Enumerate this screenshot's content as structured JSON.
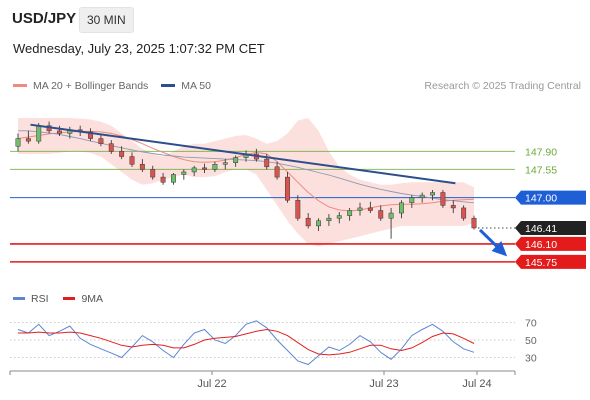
{
  "header": {
    "symbol": "USD/JPY",
    "timeframe": "30 MIN",
    "timestamp": "Wednesday, July 23, 2025 1:07:32 PM CET"
  },
  "legend": {
    "items": [
      {
        "label": "MA 20 + Bollinger Bands",
        "color": "#f08a80"
      },
      {
        "label": "MA 50",
        "color": "#2b4f8c"
      }
    ],
    "credit": "Research © 2025 Trading Central"
  },
  "rsi_legend": {
    "items": [
      {
        "label": "RSI",
        "color": "#5a86d4"
      },
      {
        "label": "9MA",
        "color": "#e02020"
      }
    ]
  },
  "chart_data": [
    {
      "type": "candlestick",
      "x_ticks": [
        "Jul 22",
        "Jul 23",
        "Jul 24"
      ],
      "ylim": [
        145.3,
        148.55
      ],
      "levels": [
        {
          "value": "147.90",
          "kind": "resistance",
          "color": "#6aaa3a",
          "boxed": false
        },
        {
          "value": "147.55",
          "kind": "resistance",
          "color": "#6aaa3a",
          "boxed": false
        },
        {
          "value": "147.00",
          "kind": "pivot",
          "color": "#1f5fd6",
          "boxed": true
        },
        {
          "value": "146.41",
          "kind": "last-price",
          "color": "#222222",
          "boxed": true
        },
        {
          "value": "146.10",
          "kind": "support",
          "color": "#e31b1b",
          "boxed": true
        },
        {
          "value": "145.75",
          "kind": "support",
          "color": "#e31b1b",
          "boxed": true
        }
      ],
      "trendline": {
        "start": 148.42,
        "end": 147.28,
        "color": "#2b4f8c"
      },
      "forecast_arrow": {
        "from": 146.41,
        "to": 145.78,
        "direction": "down",
        "color": "#1f5fd6"
      },
      "series": [
        {
          "name": "MA 20",
          "values": [
            148.15,
            148.18,
            148.21,
            148.24,
            148.26,
            148.28,
            148.29,
            148.29,
            148.28,
            148.25,
            148.2,
            148.13,
            148.05,
            147.96,
            147.88,
            147.8,
            147.74,
            147.7,
            147.69,
            147.7,
            147.73,
            147.78,
            147.84,
            147.88,
            147.85,
            147.7,
            147.5,
            147.3,
            147.1,
            146.94,
            146.82,
            146.76,
            146.74,
            146.76,
            146.8,
            146.84,
            146.86,
            146.87,
            146.87,
            146.88,
            146.9,
            146.93,
            146.95,
            146.96,
            146.97
          ]
        },
        {
          "name": "MA 50",
          "values": [
            148.3,
            148.3,
            148.28,
            148.26,
            148.23,
            148.19,
            148.15,
            148.1,
            148.06,
            148.01,
            147.97,
            147.93,
            147.89,
            147.86,
            147.83,
            147.81,
            147.79,
            147.78,
            147.77,
            147.76,
            147.75,
            147.74,
            147.73,
            147.72,
            147.7,
            147.67,
            147.63,
            147.59,
            147.54,
            147.49,
            147.44,
            147.38,
            147.32,
            147.26,
            147.21,
            147.16,
            147.12,
            147.08,
            147.05,
            147.02,
            146.99,
            146.96,
            146.94,
            146.92,
            146.9
          ]
        },
        {
          "name": "Bollinger Upper",
          "values": [
            148.55,
            148.55,
            148.55,
            148.55,
            148.55,
            148.55,
            148.54,
            148.52,
            148.48,
            148.4,
            148.25,
            148.1,
            147.95,
            147.85,
            147.8,
            147.9,
            148.0,
            148.05,
            148.05,
            148.1,
            148.15,
            148.2,
            148.22,
            148.15,
            148.05,
            148.1,
            148.25,
            148.5,
            148.55,
            148.3,
            147.9,
            147.6,
            147.45,
            147.35,
            147.3,
            147.25,
            147.25,
            147.28,
            147.3,
            147.3,
            147.3,
            147.3,
            147.3,
            147.3,
            147.2
          ]
        },
        {
          "name": "Bollinger Lower",
          "values": [
            147.85,
            147.85,
            147.85,
            147.85,
            147.87,
            147.9,
            147.9,
            147.87,
            147.8,
            147.65,
            147.5,
            147.35,
            147.25,
            147.28,
            147.35,
            147.4,
            147.45,
            147.4,
            147.4,
            147.42,
            147.5,
            147.55,
            147.55,
            147.45,
            147.15,
            146.85,
            146.55,
            146.3,
            146.1,
            146.05,
            146.1,
            146.15,
            146.2,
            146.25,
            146.3,
            146.35,
            146.4,
            146.45,
            146.45,
            146.45,
            146.45,
            146.45,
            146.45,
            146.45,
            146.5
          ]
        },
        {
          "name": "Price",
          "ohlc": [
            [
              148.0,
              148.25,
              147.9,
              148.15
            ],
            [
              148.15,
              148.3,
              148.05,
              148.1
            ],
            [
              148.1,
              148.45,
              148.05,
              148.4
            ],
            [
              148.4,
              148.48,
              148.25,
              148.3
            ],
            [
              148.3,
              148.4,
              148.2,
              148.25
            ],
            [
              148.25,
              148.38,
              148.15,
              148.32
            ],
            [
              148.32,
              148.4,
              148.2,
              148.28
            ],
            [
              148.28,
              148.35,
              148.1,
              148.15
            ],
            [
              148.15,
              148.25,
              148.0,
              148.05
            ],
            [
              148.05,
              148.12,
              147.85,
              147.9
            ],
            [
              147.9,
              148.0,
              147.75,
              147.8
            ],
            [
              147.8,
              147.88,
              147.6,
              147.65
            ],
            [
              147.65,
              147.75,
              147.5,
              147.55
            ],
            [
              147.55,
              147.62,
              147.35,
              147.4
            ],
            [
              147.4,
              147.48,
              147.25,
              147.3
            ],
            [
              147.3,
              147.48,
              147.25,
              147.45
            ],
            [
              147.45,
              147.55,
              147.35,
              147.5
            ],
            [
              147.5,
              147.62,
              147.42,
              147.58
            ],
            [
              147.58,
              147.66,
              147.48,
              147.55
            ],
            [
              147.55,
              147.7,
              147.5,
              147.65
            ],
            [
              147.65,
              147.75,
              147.55,
              147.68
            ],
            [
              147.68,
              147.82,
              147.6,
              147.78
            ],
            [
              147.78,
              147.92,
              147.7,
              147.85
            ],
            [
              147.85,
              147.95,
              147.7,
              147.75
            ],
            [
              147.75,
              147.85,
              147.55,
              147.6
            ],
            [
              147.6,
              147.7,
              147.35,
              147.4
            ],
            [
              147.4,
              147.5,
              146.9,
              146.95
            ],
            [
              146.95,
              147.05,
              146.55,
              146.6
            ],
            [
              146.6,
              146.7,
              146.4,
              146.45
            ],
            [
              146.45,
              146.6,
              146.35,
              146.55
            ],
            [
              146.55,
              146.68,
              146.45,
              146.6
            ],
            [
              146.6,
              146.72,
              146.5,
              146.65
            ],
            [
              146.65,
              146.8,
              146.55,
              146.75
            ],
            [
              146.75,
              146.9,
              146.65,
              146.8
            ],
            [
              146.8,
              146.92,
              146.7,
              146.75
            ],
            [
              146.75,
              146.85,
              146.55,
              146.6
            ],
            [
              146.6,
              146.8,
              146.2,
              146.7
            ],
            [
              146.7,
              146.95,
              146.6,
              146.9
            ],
            [
              146.9,
              147.05,
              146.8,
              147.0
            ],
            [
              147.0,
              147.1,
              146.9,
              147.05
            ],
            [
              147.05,
              147.15,
              146.95,
              147.1
            ],
            [
              147.1,
              147.15,
              146.8,
              146.85
            ],
            [
              146.85,
              146.95,
              146.7,
              146.8
            ],
            [
              146.8,
              146.85,
              146.55,
              146.6
            ],
            [
              146.6,
              146.65,
              146.38,
              146.41
            ]
          ]
        }
      ]
    },
    {
      "type": "line",
      "y_ticks": [
        "70",
        "50",
        "30"
      ],
      "ylim": [
        18,
        82
      ],
      "series": [
        {
          "name": "RSI",
          "values": [
            62,
            58,
            68,
            55,
            60,
            66,
            52,
            45,
            40,
            35,
            30,
            42,
            55,
            48,
            38,
            30,
            45,
            58,
            62,
            50,
            46,
            55,
            68,
            72,
            64,
            50,
            38,
            26,
            22,
            32,
            42,
            38,
            45,
            55,
            48,
            36,
            28,
            40,
            55,
            62,
            68,
            60,
            48,
            40,
            36
          ]
        },
        {
          "name": "9MA",
          "values": [
            58,
            58,
            59,
            58,
            58,
            59,
            58,
            55,
            52,
            48,
            44,
            42,
            44,
            45,
            44,
            41,
            41,
            45,
            50,
            52,
            53,
            54,
            57,
            60,
            62,
            60,
            55,
            47,
            39,
            34,
            33,
            34,
            36,
            40,
            44,
            44,
            40,
            38,
            41,
            47,
            54,
            58,
            57,
            52,
            46
          ]
        }
      ]
    }
  ]
}
